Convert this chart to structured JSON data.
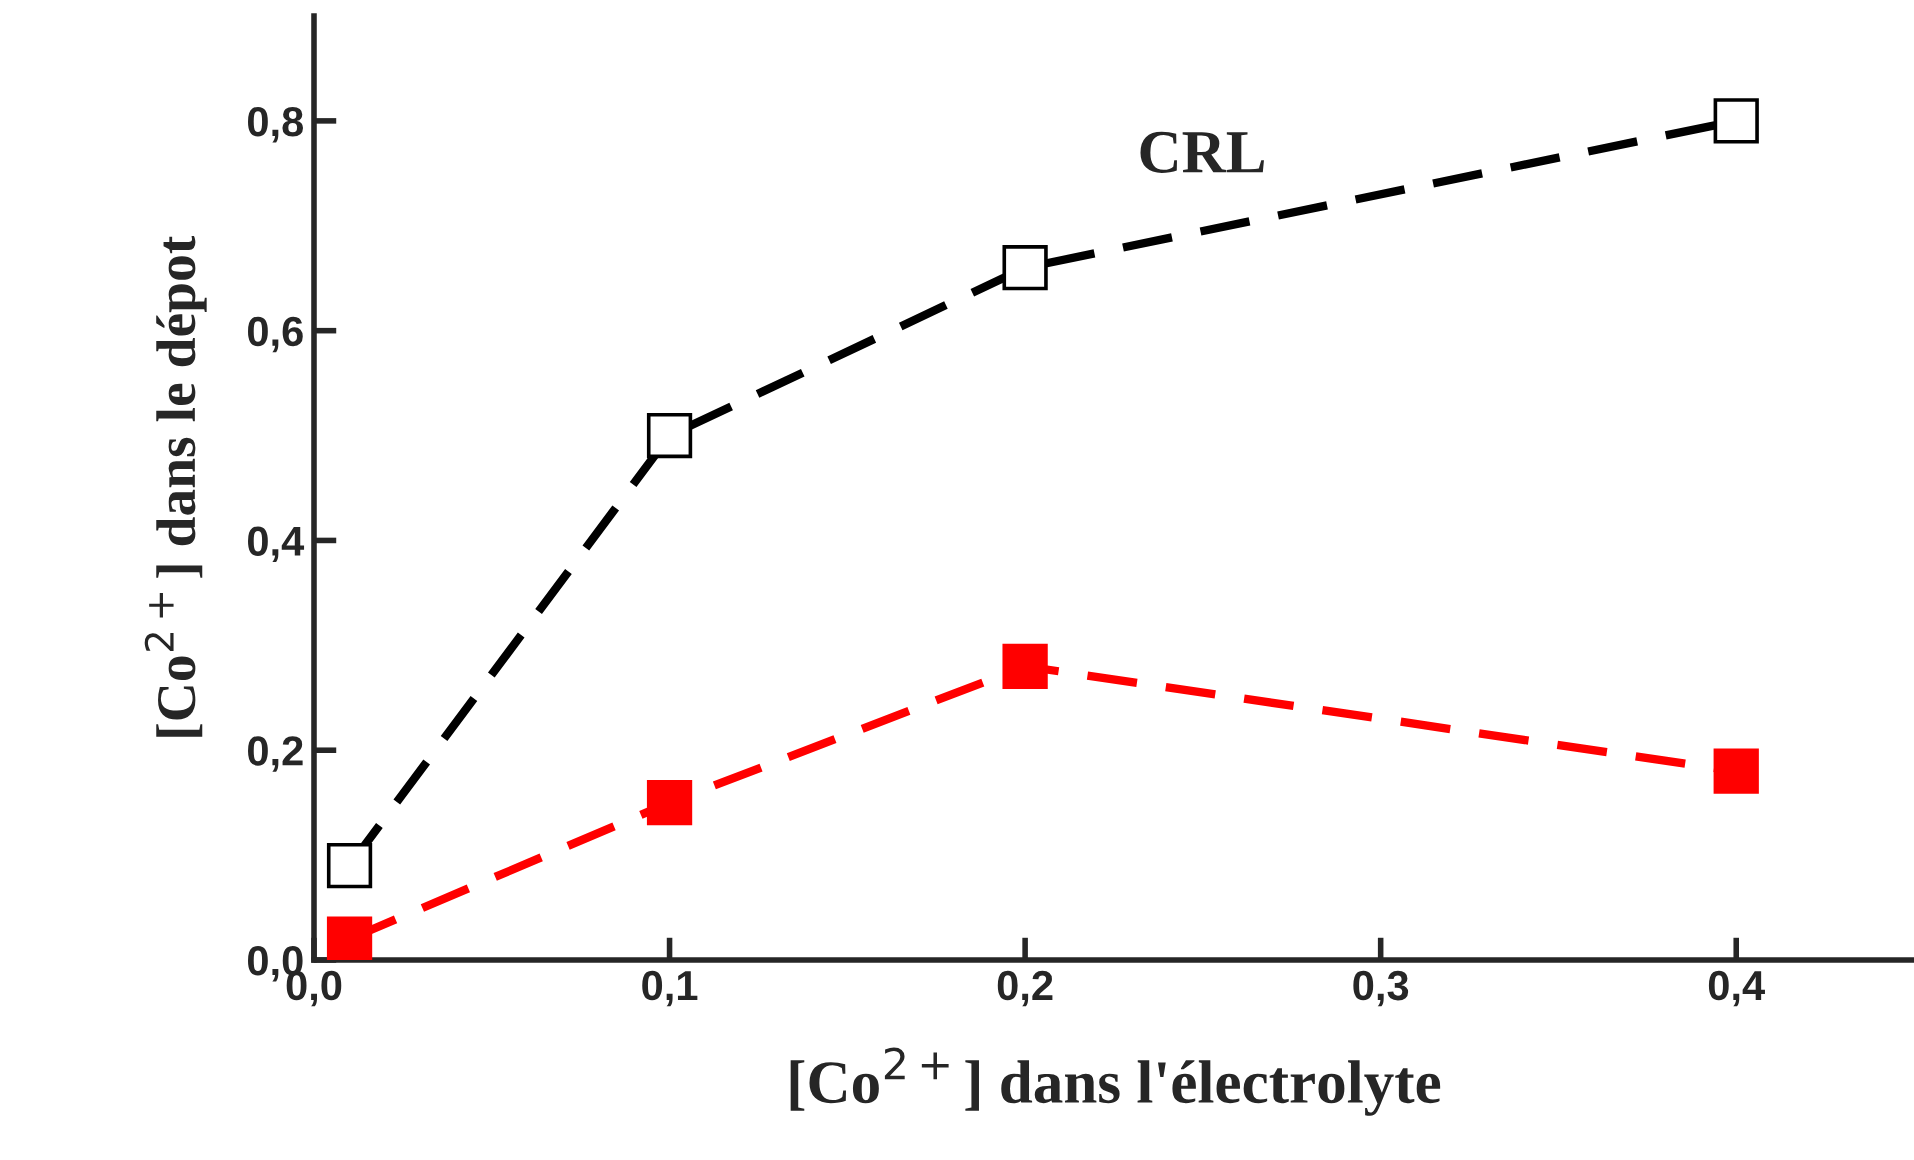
{
  "chart_data": {
    "type": "line",
    "xlabel": "[Co$^{2+}$] dans l'électrolyte",
    "ylabel": "[Co$^{2+}$] dans le dépot",
    "x": [
      0.01,
      0.1,
      0.2,
      0.4
    ],
    "series": [
      {
        "color": "#000000",
        "values": [
          0.09,
          0.5,
          0.66,
          0.8
        ]
      },
      {
        "color": "#ff0000",
        "values": [
          0.02,
          0.15,
          0.28,
          0.18
        ]
      }
    ],
    "annotations": [
      "CRL"
    ],
    "marker": "square",
    "line_style": "dashed",
    "grid": false,
    "legend": false,
    "xlim": [
      0,
      0.45
    ],
    "ylim": [
      0,
      0.9
    ],
    "xticks": [
      {
        "value": 0,
        "label": "0,0"
      },
      {
        "value": 0.1,
        "label": "0,1"
      },
      {
        "value": 0.2,
        "label": "0,2"
      },
      {
        "value": 0.3,
        "label": "0,3"
      },
      {
        "value": 0.4,
        "label": "0,4"
      }
    ],
    "yticks": [
      {
        "value": 0,
        "label": "0,0"
      },
      {
        "value": 0.2,
        "label": "0,2"
      },
      {
        "value": 0.4,
        "label": "0,4"
      },
      {
        "value": 0.6,
        "label": "0,6"
      },
      {
        "value": 0.8,
        "label": "0,8"
      }
    ]
  }
}
